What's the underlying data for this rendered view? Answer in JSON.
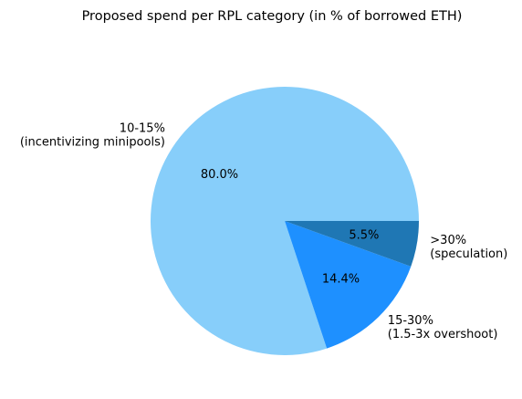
{
  "chart_data": {
    "type": "pie",
    "title": "Proposed spend per RPL category (in % of borrowed ETH)",
    "slices": [
      {
        "label_lines": [
          "10-15%",
          "(incentivizing minipools)"
        ],
        "value": 80.0,
        "pct_label": "80.0%",
        "color": "#87CEFA"
      },
      {
        "label_lines": [
          "15-30%",
          "(1.5-3x overshoot)"
        ],
        "value": 14.4,
        "pct_label": "14.4%",
        "color": "#1E90FF"
      },
      {
        "label_lines": [
          ">30%",
          "(speculation)"
        ],
        "value": 5.5,
        "pct_label": "5.5%",
        "color": "#1F77B4"
      }
    ],
    "start_angle_deg": 0,
    "direction": "counterclockwise"
  }
}
